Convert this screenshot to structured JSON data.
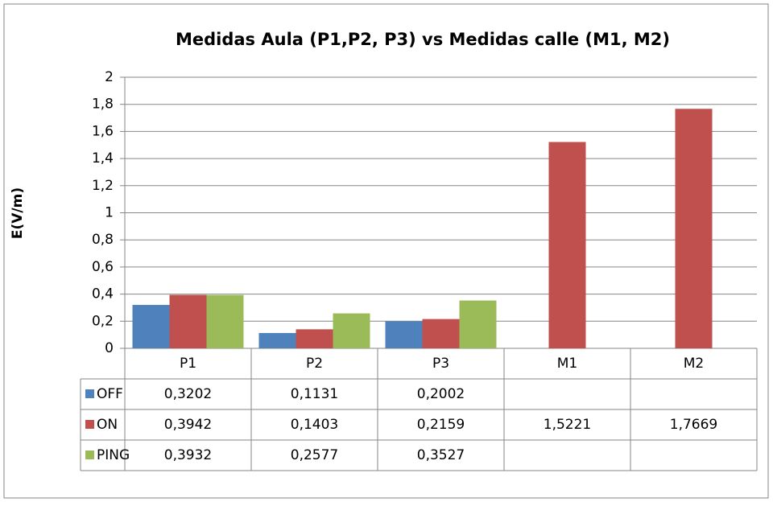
{
  "chart_data": {
    "type": "bar",
    "title": "Medidas Aula (P1,P2, P3) vs Medidas calle (M1, M2)",
    "y_label": "E(V/m)",
    "categories": [
      "P1",
      "P2",
      "P3",
      "M1",
      "M2"
    ],
    "series": [
      {
        "name": "OFF",
        "color": "#4f81bd",
        "values": [
          0.3202,
          0.1131,
          0.2002,
          null,
          null
        ],
        "value_labels": [
          "0,3202",
          "0,1131",
          "0,2002",
          null,
          null
        ]
      },
      {
        "name": "ON",
        "color": "#c0504d",
        "values": [
          0.3942,
          0.1403,
          0.2159,
          1.5221,
          1.7669
        ],
        "value_labels": [
          "0,3942",
          "0,1403",
          "0,2159",
          "1,5221",
          "1,7669"
        ]
      },
      {
        "name": "PING",
        "color": "#9bbb59",
        "values": [
          0.3932,
          0.2577,
          0.3527,
          null,
          null
        ],
        "value_labels": [
          "0,3932",
          "0,2577",
          "0,3527",
          null,
          null
        ]
      }
    ],
    "ylim": [
      0,
      2
    ],
    "yticks": [
      0,
      {
        "value": 0.2,
        "label": "0,2"
      },
      {
        "value": 0.4,
        "label": "0,4"
      },
      {
        "value": 0.6,
        "label": "0,6"
      },
      {
        "value": 0.8,
        "label": "0,8"
      },
      1,
      {
        "value": 1.2,
        "label": "1,2"
      },
      {
        "value": 1.4,
        "label": "1,4"
      },
      {
        "value": 1.6,
        "label": "1,6"
      },
      {
        "value": 1.8,
        "label": "1,8"
      },
      2
    ],
    "grid": true
  }
}
